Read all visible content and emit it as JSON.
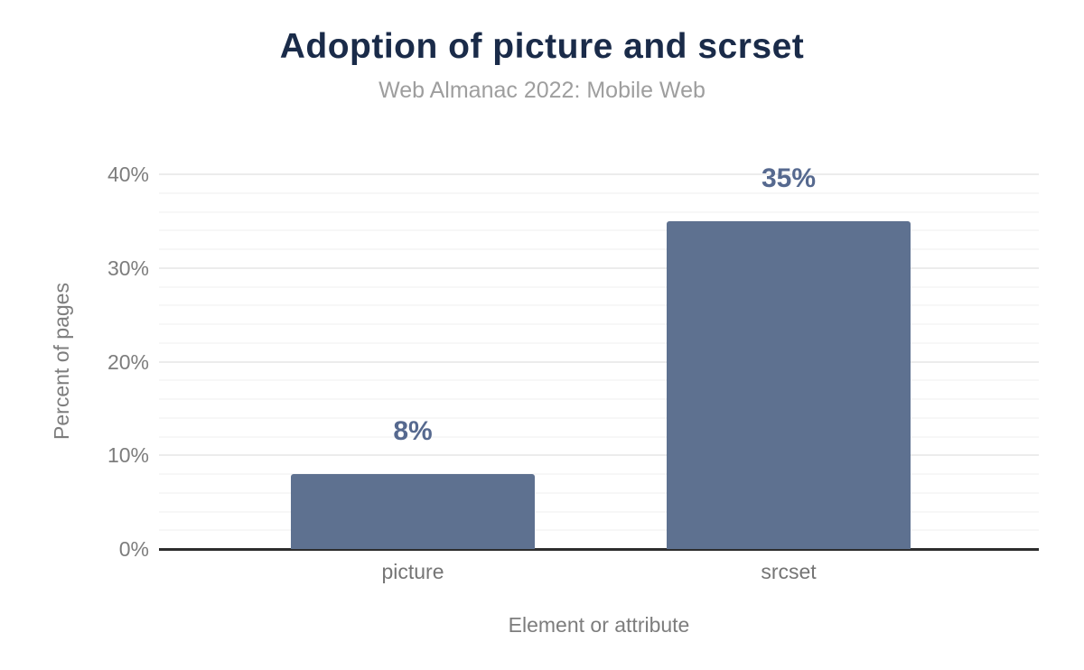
{
  "chart_data": {
    "type": "bar",
    "title": "Adoption of picture and scrset",
    "subtitle": "Web Almanac 2022: Mobile Web",
    "xlabel": "Element or attribute",
    "ylabel": "Percent of pages",
    "categories": [
      "picture",
      "srcset"
    ],
    "values": [
      8,
      35
    ],
    "value_labels": [
      "8%",
      "35%"
    ],
    "yticks": [
      {
        "value": 0,
        "label": "0%"
      },
      {
        "value": 10,
        "label": "10%"
      },
      {
        "value": 20,
        "label": "20%"
      },
      {
        "value": 30,
        "label": "30%"
      },
      {
        "value": 40,
        "label": "40%"
      }
    ],
    "ylim": [
      0,
      40
    ],
    "grid": {
      "minor_step": 2,
      "major_step": 10,
      "grid_on": true
    },
    "legend_position": "none",
    "colors": {
      "bar": "#5e7190",
      "value_label": "#56698f",
      "title": "#1a2b49",
      "subtitle": "#9e9e9e",
      "axis_text": "#7d7d7d",
      "baseline": "#2d2d2d",
      "major_grid": "#ececec",
      "minor_grid": "#f7f7f7"
    }
  }
}
